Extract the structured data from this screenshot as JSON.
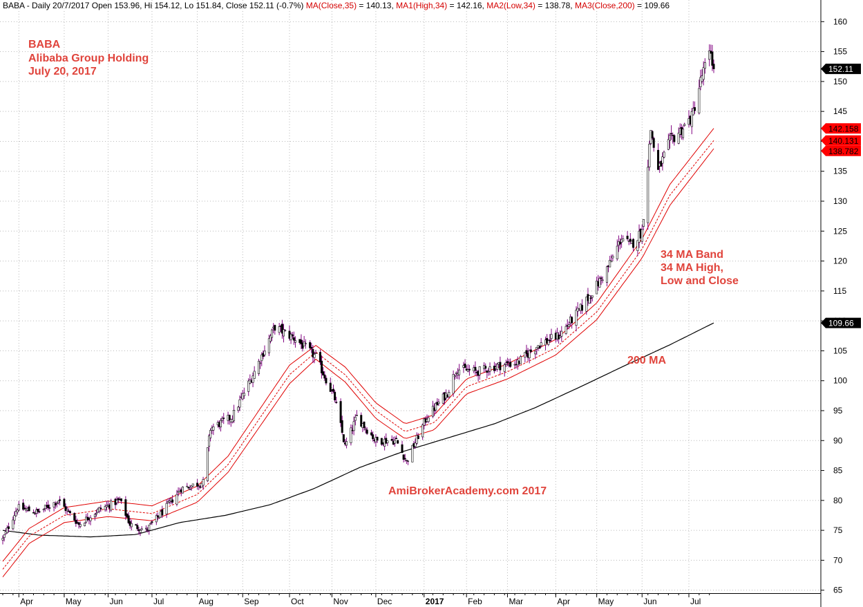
{
  "chart_data": {
    "type": "candlestick",
    "header": {
      "prefix": "BABA - Daily 20/7/2017 Open 153.96, Hi 154.12, Lo 151.84, Close 152.11 (-0.7%) ",
      "ma": "MA(Close,35)",
      "ma_value": " = 140.13, ",
      "ma1": "MA1(High,34)",
      "ma1_value": " = 142.16, ",
      "ma2": "MA2(Low,34)",
      "ma2_value": " = 138.78, ",
      "ma3": "MA3(Close,200)",
      "ma3_value": " = 109.66"
    },
    "annotations": {
      "ticker": "BABA",
      "company": "Alibaba Group Holding",
      "date": "July 20, 2017",
      "band_line1": "34 MA Band",
      "band_line2": "34 MA High,",
      "band_line3": "Low and Close",
      "ma200": "200 MA",
      "watermark": "AmiBrokerAcademy.com  2017"
    },
    "y_axis": {
      "range": [
        64.5,
        162
      ],
      "ticks": [
        "65",
        "70",
        "75",
        "80",
        "85",
        "90",
        "95",
        "100",
        "105",
        "110",
        "115",
        "120",
        "125",
        "130",
        "135",
        "140",
        "145",
        "150",
        "155",
        "160"
      ]
    },
    "x_axis": {
      "months": [
        {
          "label": "Apr",
          "date": "2016-04-01"
        },
        {
          "label": "May",
          "date": "2016-05-02"
        },
        {
          "label": "Jun",
          "date": "2016-06-01"
        },
        {
          "label": "Jul",
          "date": "2016-07-01"
        },
        {
          "label": "Aug",
          "date": "2016-08-01"
        },
        {
          "label": "Sep",
          "date": "2016-09-01"
        },
        {
          "label": "Oct",
          "date": "2016-10-03"
        },
        {
          "label": "Nov",
          "date": "2016-11-01"
        },
        {
          "label": "Dec",
          "date": "2016-12-01"
        },
        {
          "label": "2017",
          "date": "2017-01-03"
        },
        {
          "label": "Feb",
          "date": "2017-02-01"
        },
        {
          "label": "Mar",
          "date": "2017-03-01"
        },
        {
          "label": "Apr",
          "date": "2017-04-03"
        },
        {
          "label": "May",
          "date": "2017-05-01"
        },
        {
          "label": "Jun",
          "date": "2017-06-01"
        },
        {
          "label": "Jul",
          "date": "2017-07-03"
        }
      ],
      "first_date": "2016-03-21",
      "last_date": "2017-07-20"
    },
    "price_anchors": [
      {
        "date": "2016-03-21",
        "close": 73.5
      },
      {
        "date": "2016-03-31",
        "close": 78.8
      },
      {
        "date": "2016-04-14",
        "close": 78
      },
      {
        "date": "2016-04-28",
        "close": 80
      },
      {
        "date": "2016-05-12",
        "close": 76
      },
      {
        "date": "2016-05-26",
        "close": 78.5
      },
      {
        "date": "2016-06-09",
        "close": 80
      },
      {
        "date": "2016-06-16",
        "close": 76
      },
      {
        "date": "2016-06-27",
        "close": 75
      },
      {
        "date": "2016-07-08",
        "close": 78
      },
      {
        "date": "2016-07-21",
        "close": 82
      },
      {
        "date": "2016-08-05",
        "close": 83
      },
      {
        "date": "2016-08-10",
        "close": 92
      },
      {
        "date": "2016-08-25",
        "close": 94
      },
      {
        "date": "2016-09-08",
        "close": 101
      },
      {
        "date": "2016-09-23",
        "close": 109
      },
      {
        "date": "2016-10-07",
        "close": 107
      },
      {
        "date": "2016-10-21",
        "close": 104
      },
      {
        "date": "2016-11-03",
        "close": 97
      },
      {
        "date": "2016-11-10",
        "close": 89
      },
      {
        "date": "2016-11-18",
        "close": 94
      },
      {
        "date": "2016-12-01",
        "close": 90
      },
      {
        "date": "2016-12-15",
        "close": 90
      },
      {
        "date": "2016-12-22",
        "close": 86.5
      },
      {
        "date": "2017-01-05",
        "close": 94
      },
      {
        "date": "2017-01-19",
        "close": 98
      },
      {
        "date": "2017-01-25",
        "close": 102
      },
      {
        "date": "2017-02-08",
        "close": 101.5
      },
      {
        "date": "2017-02-22",
        "close": 102.5
      },
      {
        "date": "2017-03-08",
        "close": 103
      },
      {
        "date": "2017-03-22",
        "close": 106
      },
      {
        "date": "2017-04-05",
        "close": 107.5
      },
      {
        "date": "2017-04-20",
        "close": 112
      },
      {
        "date": "2017-05-04",
        "close": 117
      },
      {
        "date": "2017-05-11",
        "close": 120
      },
      {
        "date": "2017-05-18",
        "close": 124
      },
      {
        "date": "2017-05-24",
        "close": 122.5
      },
      {
        "date": "2017-06-01",
        "close": 125
      },
      {
        "date": "2017-06-07",
        "close": 142
      },
      {
        "date": "2017-06-12",
        "close": 135
      },
      {
        "date": "2017-06-20",
        "close": 140
      },
      {
        "date": "2017-06-28",
        "close": 142
      },
      {
        "date": "2017-07-05",
        "close": 144
      },
      {
        "date": "2017-07-12",
        "close": 151
      },
      {
        "date": "2017-07-18",
        "close": 155
      },
      {
        "date": "2017-07-20",
        "close": 152.11
      }
    ],
    "ma_close_35": [
      {
        "date": "2016-03-21",
        "v": 68.5
      },
      {
        "date": "2016-04-08",
        "v": 74
      },
      {
        "date": "2016-05-02",
        "v": 77.5
      },
      {
        "date": "2016-06-01",
        "v": 78.6
      },
      {
        "date": "2016-07-01",
        "v": 77.8
      },
      {
        "date": "2016-08-01",
        "v": 81
      },
      {
        "date": "2016-08-22",
        "v": 86
      },
      {
        "date": "2016-09-12",
        "v": 93.5
      },
      {
        "date": "2016-10-03",
        "v": 101
      },
      {
        "date": "2016-10-21",
        "v": 104.8
      },
      {
        "date": "2016-11-10",
        "v": 101
      },
      {
        "date": "2016-12-01",
        "v": 95
      },
      {
        "date": "2016-12-21",
        "v": 91.5
      },
      {
        "date": "2017-01-10",
        "v": 93
      },
      {
        "date": "2017-02-01",
        "v": 99
      },
      {
        "date": "2017-03-01",
        "v": 101.5
      },
      {
        "date": "2017-04-03",
        "v": 105.5
      },
      {
        "date": "2017-05-01",
        "v": 111.5
      },
      {
        "date": "2017-06-01",
        "v": 122
      },
      {
        "date": "2017-06-20",
        "v": 131
      },
      {
        "date": "2017-07-20",
        "v": 140.13
      }
    ],
    "ma_high_34": [
      {
        "date": "2016-03-21",
        "v": 69.8
      },
      {
        "date": "2016-04-08",
        "v": 75.3
      },
      {
        "date": "2016-05-02",
        "v": 78.8
      },
      {
        "date": "2016-06-01",
        "v": 79.9
      },
      {
        "date": "2016-07-01",
        "v": 79.1
      },
      {
        "date": "2016-08-01",
        "v": 82.4
      },
      {
        "date": "2016-08-22",
        "v": 87.4
      },
      {
        "date": "2016-09-12",
        "v": 95
      },
      {
        "date": "2016-10-03",
        "v": 102.6
      },
      {
        "date": "2016-10-21",
        "v": 105.9
      },
      {
        "date": "2016-11-10",
        "v": 102.3
      },
      {
        "date": "2016-12-01",
        "v": 96.3
      },
      {
        "date": "2016-12-21",
        "v": 92.8
      },
      {
        "date": "2017-01-10",
        "v": 94.3
      },
      {
        "date": "2017-02-01",
        "v": 100.3
      },
      {
        "date": "2017-03-01",
        "v": 102.8
      },
      {
        "date": "2017-04-03",
        "v": 106.9
      },
      {
        "date": "2017-05-01",
        "v": 113
      },
      {
        "date": "2017-06-01",
        "v": 123.7
      },
      {
        "date": "2017-06-20",
        "v": 132.8
      },
      {
        "date": "2017-07-20",
        "v": 142.16
      }
    ],
    "ma_low_34": [
      {
        "date": "2016-03-21",
        "v": 67.2
      },
      {
        "date": "2016-04-08",
        "v": 72.8
      },
      {
        "date": "2016-05-02",
        "v": 76.3
      },
      {
        "date": "2016-06-01",
        "v": 77.3
      },
      {
        "date": "2016-07-01",
        "v": 76.6
      },
      {
        "date": "2016-08-01",
        "v": 79.7
      },
      {
        "date": "2016-08-22",
        "v": 84.7
      },
      {
        "date": "2016-09-12",
        "v": 92.1
      },
      {
        "date": "2016-10-03",
        "v": 99.5
      },
      {
        "date": "2016-10-21",
        "v": 103.6
      },
      {
        "date": "2016-11-10",
        "v": 99.8
      },
      {
        "date": "2016-12-01",
        "v": 93.7
      },
      {
        "date": "2016-12-21",
        "v": 90.3
      },
      {
        "date": "2017-01-10",
        "v": 91.8
      },
      {
        "date": "2017-02-01",
        "v": 97.8
      },
      {
        "date": "2017-03-01",
        "v": 100.3
      },
      {
        "date": "2017-04-03",
        "v": 104.3
      },
      {
        "date": "2017-05-01",
        "v": 110.2
      },
      {
        "date": "2017-06-01",
        "v": 120.5
      },
      {
        "date": "2017-06-20",
        "v": 129.3
      },
      {
        "date": "2017-07-20",
        "v": 138.78
      }
    ],
    "ma_close_200": [
      {
        "date": "2016-03-21",
        "v": 75
      },
      {
        "date": "2016-04-15",
        "v": 74.2
      },
      {
        "date": "2016-05-20",
        "v": 73.9
      },
      {
        "date": "2016-06-20",
        "v": 74.3
      },
      {
        "date": "2016-07-20",
        "v": 76.3
      },
      {
        "date": "2016-08-20",
        "v": 77.5
      },
      {
        "date": "2016-09-20",
        "v": 79.3
      },
      {
        "date": "2016-10-20",
        "v": 82
      },
      {
        "date": "2016-11-20",
        "v": 85.5
      },
      {
        "date": "2016-12-20",
        "v": 88.2
      },
      {
        "date": "2017-01-20",
        "v": 90.5
      },
      {
        "date": "2017-02-20",
        "v": 92.8
      },
      {
        "date": "2017-03-20",
        "v": 95.5
      },
      {
        "date": "2017-04-20",
        "v": 99
      },
      {
        "date": "2017-05-20",
        "v": 102.5
      },
      {
        "date": "2017-06-20",
        "v": 106
      },
      {
        "date": "2017-07-20",
        "v": 109.66
      }
    ],
    "price_labels": [
      {
        "text": "152.11",
        "value": 152.11,
        "bg": "#000000",
        "fg": "#ffffff"
      },
      {
        "text": "142.158",
        "value": 142.158,
        "bg": "#ff0000",
        "fg": "#000000"
      },
      {
        "text": "140.131",
        "value": 140.131,
        "bg": "#ff0000",
        "fg": "#000000"
      },
      {
        "text": "138.782",
        "value": 138.782,
        "bg": "#ff0000",
        "fg": "#000000"
      },
      {
        "text": "109.66",
        "value": 109.66,
        "bg": "#000000",
        "fg": "#ffffff"
      }
    ],
    "colors": {
      "candle": "#800080",
      "ma_band": "#e00000",
      "ma200": "#000000",
      "grid": "#b8b8b8",
      "annotation": "#e0443c"
    },
    "grid": true
  }
}
